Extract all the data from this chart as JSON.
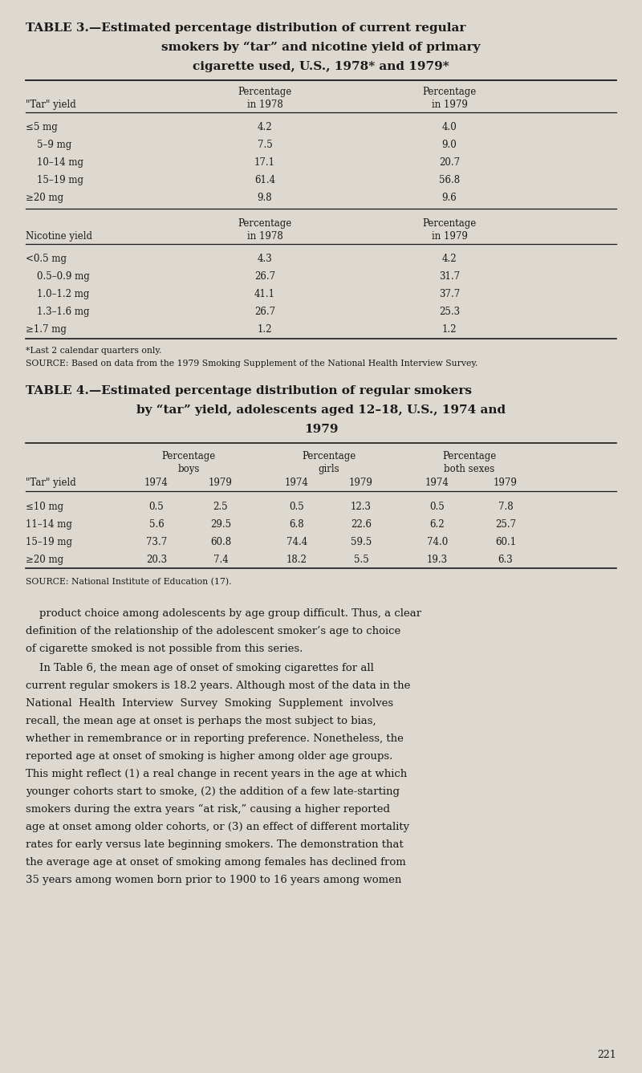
{
  "bg_color": "#ddd8d0",
  "text_color": "#1a1a1a",
  "page_width": 8.0,
  "page_height": 13.37,
  "table3_title_line1": "TABLE 3.—Estimated percentage distribution of current regular",
  "table3_title_line2": "smokers by “tar” and nicotine yield of primary",
  "table3_title_line3": "cigarette used, U.S., 1978* and 1979*",
  "table3_tar_header_col1": "\"Tar\" yield",
  "table3_tar_header_col2_line1": "Percentage",
  "table3_tar_header_col2_line2": "in 1978",
  "table3_tar_header_col3_line1": "Percentage",
  "table3_tar_header_col3_line2": "in 1979",
  "table3_tar_rows": [
    [
      "≤5 mg",
      "4.2",
      "4.0"
    ],
    [
      "5–9 mg",
      "7.5",
      "9.0"
    ],
    [
      "10–14 mg",
      "17.1",
      "20.7"
    ],
    [
      "15–19 mg",
      "61.4",
      "56.8"
    ],
    [
      "≥20 mg",
      "9.8",
      "9.6"
    ]
  ],
  "table3_nic_header_col1": "Nicotine yield",
  "table3_nic_header_col2_line1": "Percentage",
  "table3_nic_header_col2_line2": "in 1978",
  "table3_nic_header_col3_line1": "Percentage",
  "table3_nic_header_col3_line2": "in 1979",
  "table3_nic_rows": [
    [
      "<0.5 mg",
      "4.3",
      "4.2"
    ],
    [
      "0.5–0.9 mg",
      "26.7",
      "31.7"
    ],
    [
      "1.0–1.2 mg",
      "41.1",
      "37.7"
    ],
    [
      "1.3–1.6 mg",
      "26.7",
      "25.3"
    ],
    [
      "≥1.7 mg",
      "1.2",
      "1.2"
    ]
  ],
  "table3_footnote1": "*Last 2 calendar quarters only.",
  "table3_footnote2": "SOURCE: Based on data from the 1979 Smoking Supplement of the National Health Interview Survey.",
  "table4_title_line1": "TABLE 4.—Estimated percentage distribution of regular smokers",
  "table4_title_line2": "by “tar” yield, adolescents aged 12–18, U.S., 1974 and",
  "table4_title_line3": "1979",
  "table4_header_col1": "\"Tar\" yield",
  "table4_subheader_years": [
    "1974",
    "1979",
    "1974",
    "1979",
    "1974",
    "1979"
  ],
  "table4_rows": [
    [
      "≤10 mg",
      "0.5",
      "2.5",
      "0.5",
      "12.3",
      "0.5",
      "7.8"
    ],
    [
      "11–14 mg",
      "5.6",
      "29.5",
      "6.8",
      "22.6",
      "6.2",
      "25.7"
    ],
    [
      "15–19 mg",
      "73.7",
      "60.8",
      "74.4",
      "59.5",
      "74.0",
      "60.1"
    ],
    [
      "≥20 mg",
      "20.3",
      "7.4",
      "18.2",
      "5.5",
      "19.3",
      "6.3"
    ]
  ],
  "table4_footnote": "SOURCE: National Institute of Education (17).",
  "body_text_1_lines": [
    "    product choice among adolescents by age group difficult. Thus, a clear",
    "definition of the relationship of the adolescent smoker’s age to choice",
    "of cigarette smoked is not possible from this series."
  ],
  "body_text_2_lines": [
    "    In Table 6, the mean age of onset of smoking cigarettes for all",
    "current regular smokers is 18.2 years. Although most of the data in the",
    "National  Health  Interview  Survey  Smoking  Supplement  involves",
    "recall, the mean age at onset is perhaps the most subject to bias,",
    "whether in remembrance or in reporting preference. Nonetheless, the",
    "reported age at onset of smoking is higher among older age groups.",
    "This might reflect (1) a real change in recent years in the age at which",
    "younger cohorts start to smoke, (2) the addition of a few late-starting",
    "smokers during the extra years “at risk,” causing a higher reported",
    "age at onset among older cohorts, or (3) an effect of different mortality",
    "rates for early versus late beginning smokers. The demonstration that",
    "the average age at onset of smoking among females has declined from",
    "35 years among women born prior to 1900 to 16 years among women"
  ],
  "page_number": "221"
}
